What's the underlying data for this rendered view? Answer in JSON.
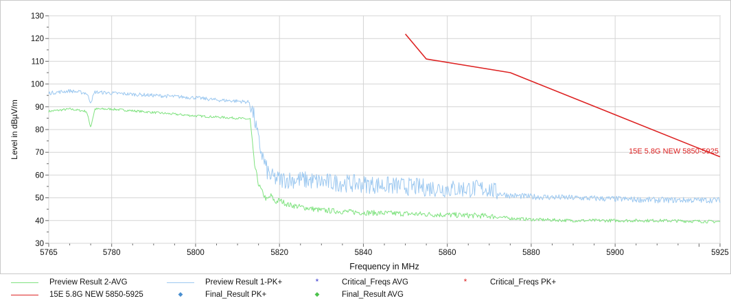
{
  "chart_data": {
    "type": "line",
    "xlabel": "Frequency in MHz",
    "ylabel": "Level in dBµV/m",
    "xlim": [
      5765,
      5925
    ],
    "ylim": [
      30,
      130
    ],
    "x_ticks": [
      5765,
      5780,
      5800,
      5820,
      5840,
      5860,
      5880,
      5900,
      5925
    ],
    "y_ticks": [
      30,
      40,
      50,
      60,
      70,
      80,
      90,
      100,
      110,
      120,
      130
    ],
    "grid": true,
    "legend_position": "bottom",
    "series": [
      {
        "name": "Preview Result 2-AVG",
        "color": "#7ee27e",
        "x": [
          5765,
          5770,
          5774,
          5775,
          5776,
          5780,
          5790,
          5800,
          5805,
          5810,
          5813,
          5814,
          5815,
          5816,
          5817,
          5818,
          5819,
          5820,
          5822,
          5825,
          5830,
          5840,
          5850,
          5860,
          5870,
          5875,
          5880,
          5890,
          5900,
          5910,
          5925
        ],
        "values": [
          88,
          89,
          88,
          81,
          89,
          89,
          87.5,
          86,
          85.5,
          85,
          84.5,
          65,
          56,
          52,
          49,
          51,
          48,
          49,
          47,
          46,
          44.5,
          43.5,
          43,
          42.5,
          42,
          41,
          40.5,
          40,
          40,
          40,
          39.5
        ]
      },
      {
        "name": "Preview Result 1-PK+",
        "color": "#9cc8f0",
        "x": [
          5765,
          5770,
          5774,
          5775,
          5776,
          5780,
          5790,
          5800,
          5805,
          5810,
          5813,
          5814,
          5815,
          5816,
          5817,
          5818,
          5820,
          5825,
          5830,
          5840,
          5850,
          5860,
          5870,
          5872,
          5875,
          5880,
          5890,
          5900,
          5910,
          5925
        ],
        "values": [
          96,
          97,
          96,
          92,
          96.5,
          96,
          95,
          94,
          93,
          92.5,
          92,
          85,
          75,
          68,
          62,
          59,
          58,
          58,
          57,
          56,
          55,
          54,
          54,
          52,
          51,
          50.5,
          50,
          49.5,
          49,
          49
        ]
      },
      {
        "name": "15E 5.8G NEW 5850-5925",
        "color": "#dd2222",
        "x": [
          5850,
          5855,
          5875,
          5925
        ],
        "values": [
          122,
          111,
          105,
          68
        ]
      }
    ],
    "annotations": [
      {
        "text": "15E 5.8G NEW 5850-5925",
        "x": 5925,
        "y": 70
      }
    ]
  },
  "legend": [
    {
      "label": "Preview Result 2-AVG",
      "kind": "line",
      "color": "#7ee27e",
      "symbol": ""
    },
    {
      "label": "Preview Result 1-PK+",
      "kind": "line",
      "color": "#9cc8f0",
      "symbol": ""
    },
    {
      "label": "Critical_Freqs AVG",
      "kind": "marker",
      "color": "#3a3ad0",
      "symbol": "*"
    },
    {
      "label": "Critical_Freqs PK+",
      "kind": "marker",
      "color": "#dd2222",
      "symbol": "*"
    },
    {
      "label": "15E 5.8G NEW 5850-5925",
      "kind": "line",
      "color": "#dd2222",
      "symbol": ""
    },
    {
      "label": "Final_Result PK+",
      "kind": "marker",
      "color": "#4a8fd0",
      "symbol": "◆"
    },
    {
      "label": "Final_Result AVG",
      "kind": "marker",
      "color": "#4cc24c",
      "symbol": "◆"
    }
  ]
}
